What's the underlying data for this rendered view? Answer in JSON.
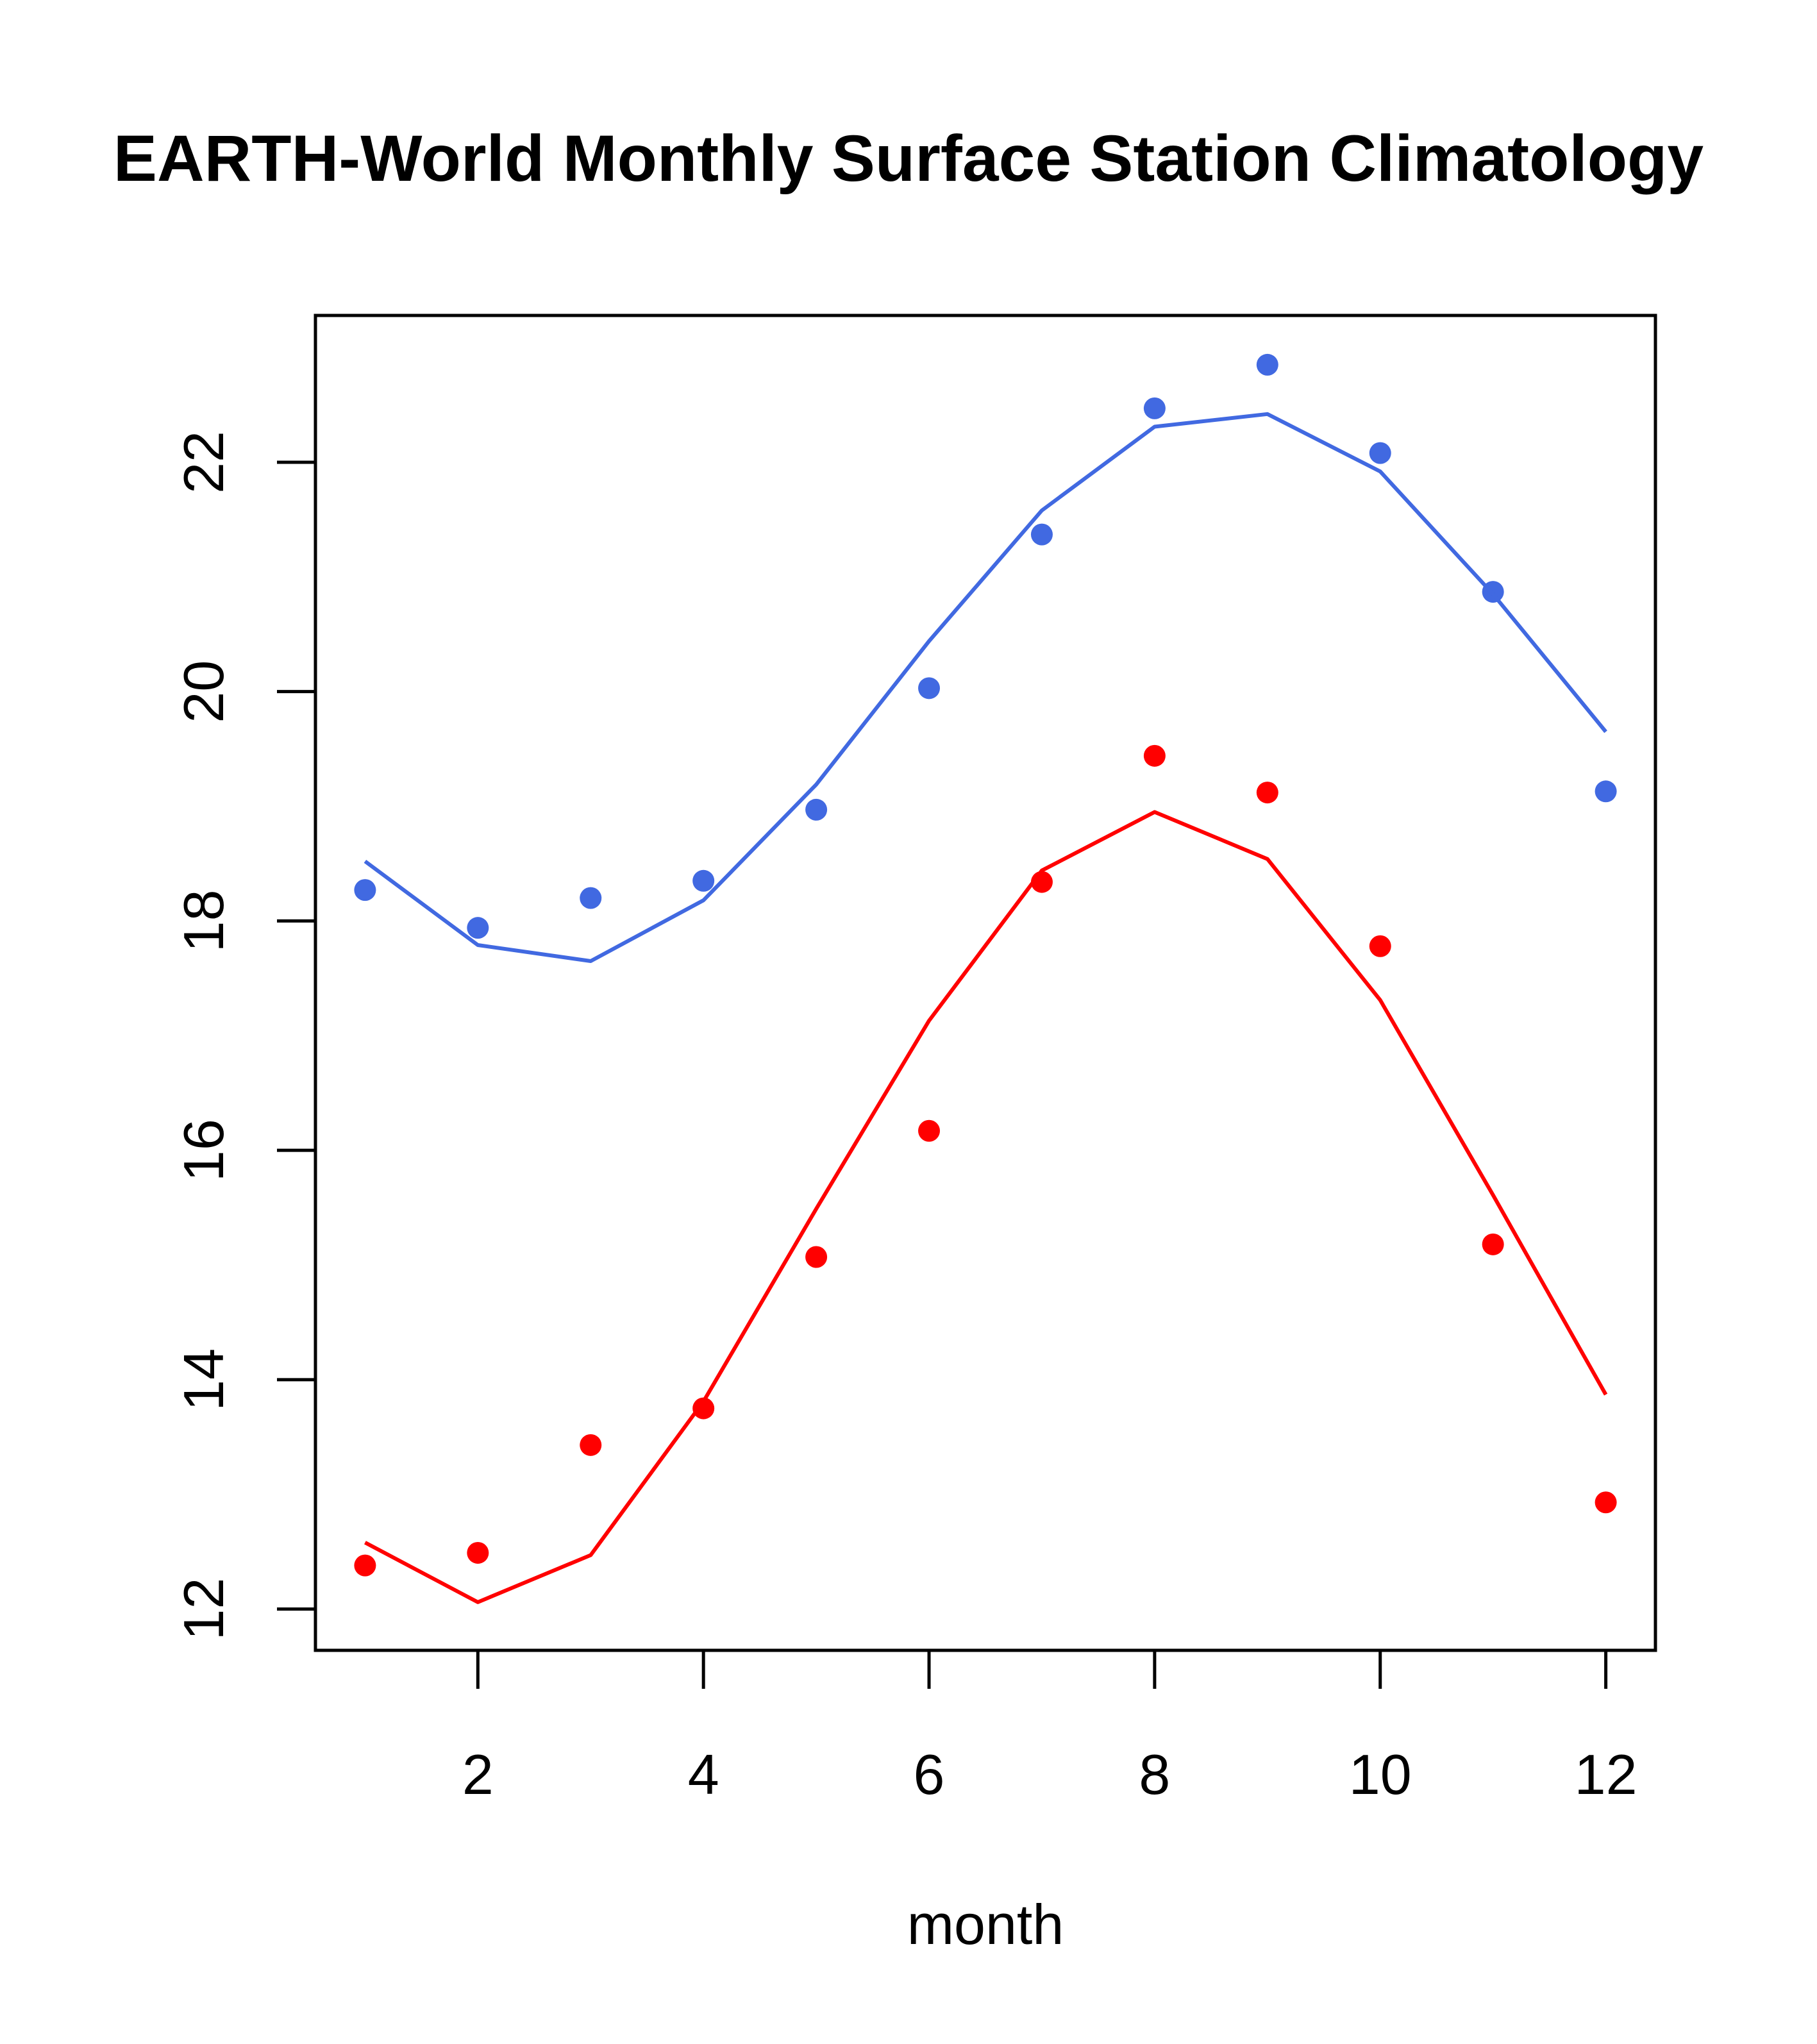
{
  "chart_data": {
    "type": "scatter",
    "title": "BERKELEY EARTH-World Monthly Surface Station Climatology",
    "visible_title": "EARTH-World Monthly Surface Station Climatology",
    "xlabel": "month",
    "ylabel": "",
    "xlim": [
      0.56,
      12.44
    ],
    "ylim": [
      11.64,
      23.28
    ],
    "x_ticks": [
      2,
      4,
      6,
      8,
      10,
      12
    ],
    "x_tick_labels": [
      "2",
      "4",
      "6",
      "8",
      "10",
      "12"
    ],
    "y_ticks": [
      12,
      14,
      16,
      18,
      20,
      22
    ],
    "y_tick_labels": [
      "12",
      "14",
      "16",
      "18",
      "20",
      "22"
    ],
    "grid": false,
    "legend": "none",
    "x": [
      1,
      2,
      3,
      4,
      5,
      6,
      7,
      8,
      9,
      10,
      11,
      12
    ],
    "series": [
      {
        "name": "blue-points",
        "kind": "points",
        "color": "#4169E1",
        "values": [
          18.27,
          17.94,
          18.2,
          18.35,
          18.97,
          20.03,
          21.37,
          22.47,
          22.85,
          22.08,
          20.87,
          19.13
        ]
      },
      {
        "name": "blue-line",
        "kind": "line",
        "color": "#4169E1",
        "values": [
          18.52,
          17.79,
          17.65,
          18.18,
          19.19,
          20.44,
          21.58,
          22.31,
          22.42,
          21.92,
          20.85,
          19.65
        ]
      },
      {
        "name": "red-points",
        "kind": "points",
        "color": "#FF0000",
        "values": [
          12.38,
          12.49,
          13.43,
          13.75,
          15.07,
          16.17,
          18.34,
          19.44,
          19.12,
          17.78,
          15.18,
          12.93
        ]
      },
      {
        "name": "red-line",
        "kind": "line",
        "color": "#FF0000",
        "values": [
          12.58,
          12.06,
          12.47,
          13.81,
          15.49,
          17.13,
          18.44,
          18.95,
          18.54,
          17.31,
          15.61,
          13.87
        ]
      }
    ]
  }
}
